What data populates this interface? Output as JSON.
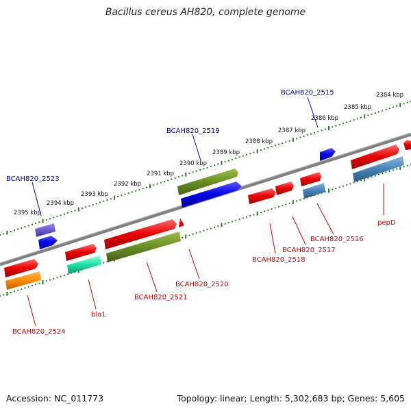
{
  "title": "Bacillus cereus AH820, complete genome",
  "footer": {
    "accession": "Accession: NC_011773",
    "summary": "Topology: linear; Length: 5,302,683 bp; Genes: 5,605"
  },
  "colors": {
    "red": "#e00000",
    "blue": "#0000e6",
    "olive": "#6b8e23",
    "steelblue": "#4682b4",
    "slateblue": "#6a5acd",
    "orange": "#ff8c00",
    "aquamarine": "#20e0a8",
    "tick_green": "#2a7a1e",
    "backbone": "#808080",
    "label_blue": "#0000aa",
    "label_red": "#cc0000"
  },
  "scale_labels": [
    "2384 kbp",
    "2385 kbp",
    "2386 kbp",
    "2387 kbp",
    "2388 kbp",
    "2389 kbp",
    "2390 kbp",
    "2391 kbp",
    "2392 kbp",
    "2393 kbp",
    "2394 kbp",
    "2395 kbp"
  ],
  "gene_labels_top": [
    "BCAH820_2515",
    "BCAH820_2519",
    "BCAH820_2523"
  ],
  "gene_labels_bottom": [
    "pepD",
    "BCAH820_2516",
    "BCAH820_2517",
    "BCAH820_2518",
    "BCAH820_2520",
    "BCAH820_2521",
    "bla1",
    "BCAH820_2524"
  ]
}
